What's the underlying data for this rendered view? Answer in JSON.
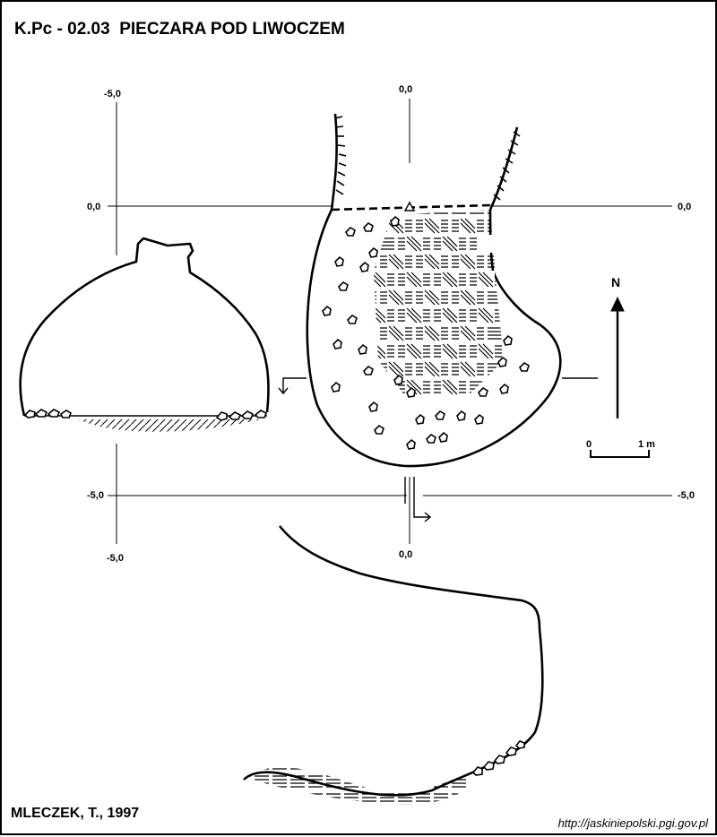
{
  "title": "K.Pc - 02.03  PIECZARA POD LIWOCZEM",
  "author": "MLECZEK, T., 1997",
  "source_url": "http://jaskiniepolski.pgi.gov.pl",
  "north_label": "N",
  "scale": {
    "zero": "0",
    "one": "1 m"
  },
  "grid_labels": {
    "left_top": "-5,0",
    "center_top": "0,0",
    "left_mid": "0,0",
    "right_mid": "0,0",
    "left_low": "-5,0",
    "right_low": "-5,0",
    "left_bottom": "-5,0",
    "center_bottom": "0,0"
  },
  "colors": {
    "ink": "#000000",
    "paper": "#ffffff"
  }
}
